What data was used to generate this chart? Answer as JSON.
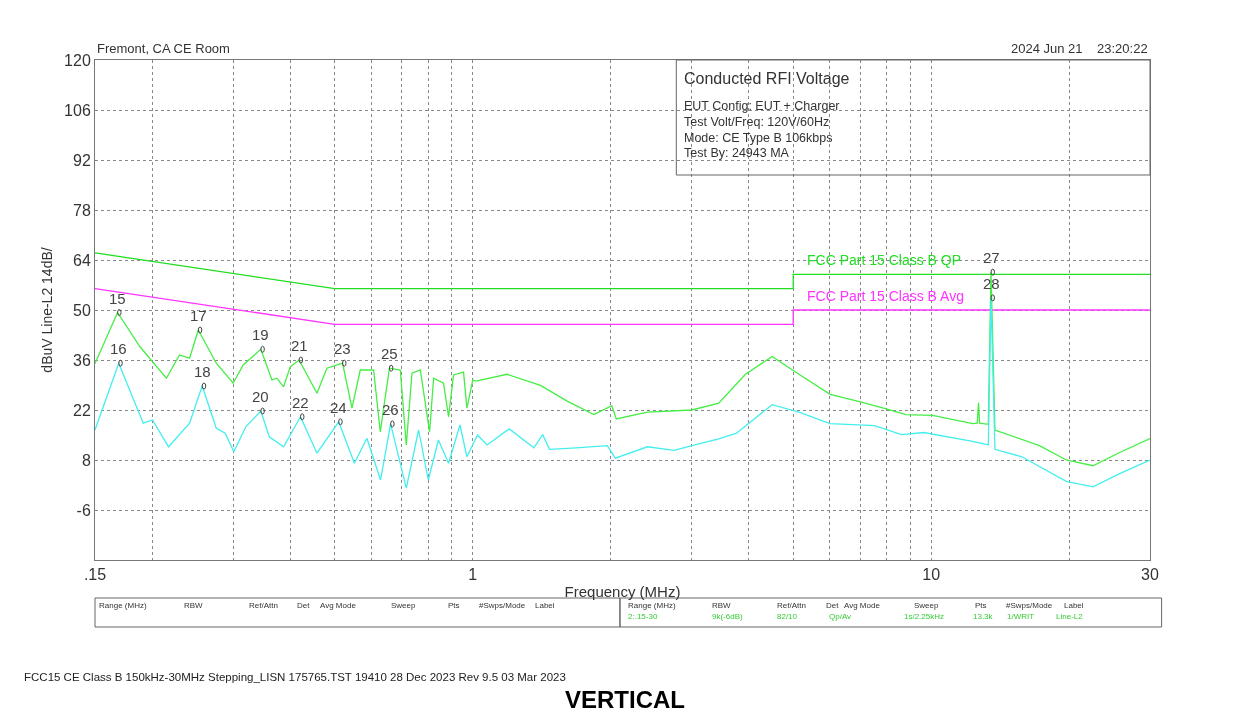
{
  "chart_data": {
    "type": "line",
    "title": "Conducted RFI Voltage",
    "xlabel": "Frequency (MHz)",
    "ylabel": "dBuV Line-L2 14dB/",
    "log": "x",
    "grid": true,
    "legend": false,
    "xlim": [
      0.15,
      30
    ],
    "ylim": [
      -20,
      120
    ],
    "xticks": [
      {
        "value": 0.15,
        "label": ".15"
      },
      {
        "value": 0.2,
        "label": null
      },
      {
        "value": 0.3,
        "label": null
      },
      {
        "value": 0.4,
        "label": null
      },
      {
        "value": 0.5,
        "label": null
      },
      {
        "value": 0.6,
        "label": null
      },
      {
        "value": 0.7,
        "label": null
      },
      {
        "value": 0.8,
        "label": null
      },
      {
        "value": 0.9,
        "label": null
      },
      1,
      {
        "value": 2,
        "label": null
      },
      {
        "value": 3,
        "label": null
      },
      {
        "value": 4,
        "label": null
      },
      {
        "value": 5,
        "label": null
      },
      {
        "value": 6,
        "label": null
      },
      {
        "value": 7,
        "label": null
      },
      {
        "value": 8,
        "label": null
      },
      {
        "value": 9,
        "label": null
      },
      10,
      {
        "value": 20,
        "label": null
      },
      30
    ],
    "yticks": [
      -6,
      8,
      22,
      36,
      50,
      64,
      78,
      92,
      106,
      120
    ],
    "series": [
      {
        "name": "FCC Part 15 Class B QP",
        "color": "#22dd22",
        "x": [
          0.15,
          0.5,
          5,
          5,
          30
        ],
        "values": [
          66,
          56,
          56,
          60,
          60
        ]
      },
      {
        "name": "FCC Part 15 Class B Avg",
        "color": "#ff33ff",
        "x": [
          0.15,
          0.5,
          5,
          5,
          30
        ],
        "values": [
          56,
          46,
          46,
          50,
          50
        ]
      },
      {
        "color": "#44ee44",
        "x": [
          0.15,
          0.168,
          0.188,
          0.2147,
          0.2293,
          0.2412,
          0.252,
          0.2758,
          0.3002,
          0.3157,
          0.345,
          0.3648,
          0.3741,
          0.3867,
          0.3999,
          0.418,
          0.4573,
          0.4808,
          0.52,
          0.5452,
          0.5684,
          0.6077,
          0.6285,
          0.658,
          0.6949,
          0.7162,
          0.7369,
          0.7684,
          0.8052,
          0.8215,
          0.8637,
          0.8857,
          0.9081,
          0.9548,
          0.9712,
          1.0,
          1.016,
          1.188,
          1.405,
          1.607,
          1.838,
          2.01,
          2.056,
          2.404,
          3.006,
          3.44,
          3.934,
          4.498,
          5.145,
          6.018,
          7.04,
          8.05,
          8.8,
          10.07,
          12.31,
          12.6,
          12.68,
          12.75,
          13.32,
          13.5,
          13.77,
          17.22,
          19.7,
          22.53,
          25.76,
          30
        ],
        "values": [
          35,
          49.3,
          39.7,
          30.9,
          37.4,
          36.5,
          44.4,
          35.1,
          29.5,
          34.6,
          39,
          30.4,
          30.9,
          28.5,
          34.1,
          36,
          26.7,
          33.7,
          35.1,
          22.5,
          33.2,
          33.2,
          15.9,
          33.7,
          33.2,
          12.2,
          32.3,
          33.2,
          15.9,
          30.9,
          29.5,
          20.1,
          31.8,
          32.6,
          22.5,
          30.4,
          30.1,
          32,
          28.9,
          24.5,
          20.7,
          23.2,
          19.5,
          21.4,
          22,
          23.9,
          32,
          37,
          32,
          26.4,
          24.2,
          22.2,
          20.7,
          20.5,
          18.2,
          18.3,
          24,
          18.3,
          18,
          60.6,
          16.4,
          12,
          8,
          6.4,
          10.1,
          14
        ]
      },
      {
        "color": "#44eeee",
        "x": [
          0.15,
          0.169,
          0.1911,
          0.2002,
          0.217,
          0.2412,
          0.257,
          0.2758,
          0.2885,
          0.3012,
          0.3199,
          0.345,
          0.36,
          0.3867,
          0.421,
          0.4573,
          0.51,
          0.5519,
          0.5877,
          0.6294,
          0.662,
          0.7162,
          0.7619,
          0.8,
          0.8416,
          0.8857,
          0.9378,
          0.9712,
          1.024,
          1.074,
          1.201,
          1.359,
          1.421,
          1.47,
          1.681,
          1.966,
          2.046,
          2.404,
          2.75,
          3.006,
          3.44,
          3.761,
          4.498,
          5.145,
          6.018,
          7.527,
          8.609,
          9.627,
          12.31,
          13.32,
          13.5,
          13.77,
          15.75,
          19.7,
          22.53,
          25.76,
          30
        ],
        "values": [
          16.4,
          35.1,
          18.3,
          19.2,
          11.7,
          18.3,
          28.7,
          16.9,
          15.5,
          10.3,
          17.3,
          21.7,
          14.5,
          11.7,
          20.1,
          9.9,
          18.7,
          7.1,
          14.1,
          2.4,
          18.1,
          0.1,
          16.4,
          2.4,
          13.6,
          7.1,
          17.8,
          8.9,
          15,
          12.2,
          16.7,
          11.4,
          15.1,
          11,
          11.4,
          12,
          8.5,
          11.7,
          10.7,
          12,
          13.9,
          15.5,
          23.5,
          21.4,
          18.2,
          17.6,
          15.1,
          15.7,
          13.2,
          12.2,
          53.4,
          11,
          8.9,
          2,
          0.5,
          4.2,
          8
        ]
      }
    ],
    "annotations": [
      "Fremont, CA CE Room",
      "2024 Jun 21    23:20:22",
      "EUT Config: EUT + Charger",
      "Test Volt/Freq: 120V/60Hz",
      "Mode: CE Type B 106kbps",
      "Test By: 24943 MA",
      "FCC15 CE Class B 150kHz-30MHz Stepping_LISN 175765.TST 19410 28 Dec 2023 Rev 9.5 03 Mar 2023",
      "VERTICAL",
      "Range (MHz)",
      "RBW",
      "Ref/Attn",
      "Det",
      "Avg Mode",
      "Sweep",
      "Pts",
      "#Swps/Mode",
      "Label",
      "Range (MHz)",
      "RBW",
      "Ref/Attn",
      "Det",
      "Avg Mode",
      "Sweep",
      "Pts",
      "#Swps/Mode",
      "Label",
      "2:.15-30",
      "9k(-6dB)",
      "82/10",
      "Qp/Av",
      "1s/2.25kHz",
      "13.3k",
      "1/WRIT",
      "Line-L2",
      {
        "text": "15",
        "x": 0.168,
        "y": 49.3
      },
      {
        "text": "16",
        "x": 0.169,
        "y": 35.1
      },
      {
        "text": "17",
        "x": 0.252,
        "y": 44.4
      },
      {
        "text": "18",
        "x": 0.257,
        "y": 28.7
      },
      {
        "text": "19",
        "x": 0.345,
        "y": 39
      },
      {
        "text": "20",
        "x": 0.345,
        "y": 21.7
      },
      {
        "text": "21",
        "x": 0.418,
        "y": 36
      },
      {
        "text": "22",
        "x": 0.421,
        "y": 20.1
      },
      {
        "text": "23",
        "x": 0.52,
        "y": 35.1
      },
      {
        "text": "24",
        "x": 0.51,
        "y": 18.7
      },
      {
        "text": "25",
        "x": 0.658,
        "y": 33.7
      },
      {
        "text": "26",
        "x": 0.662,
        "y": 18.1
      },
      {
        "text": "27",
        "x": 13.5,
        "y": 60.6
      },
      {
        "text": "28",
        "x": 13.5,
        "y": 53.4
      }
    ]
  }
}
